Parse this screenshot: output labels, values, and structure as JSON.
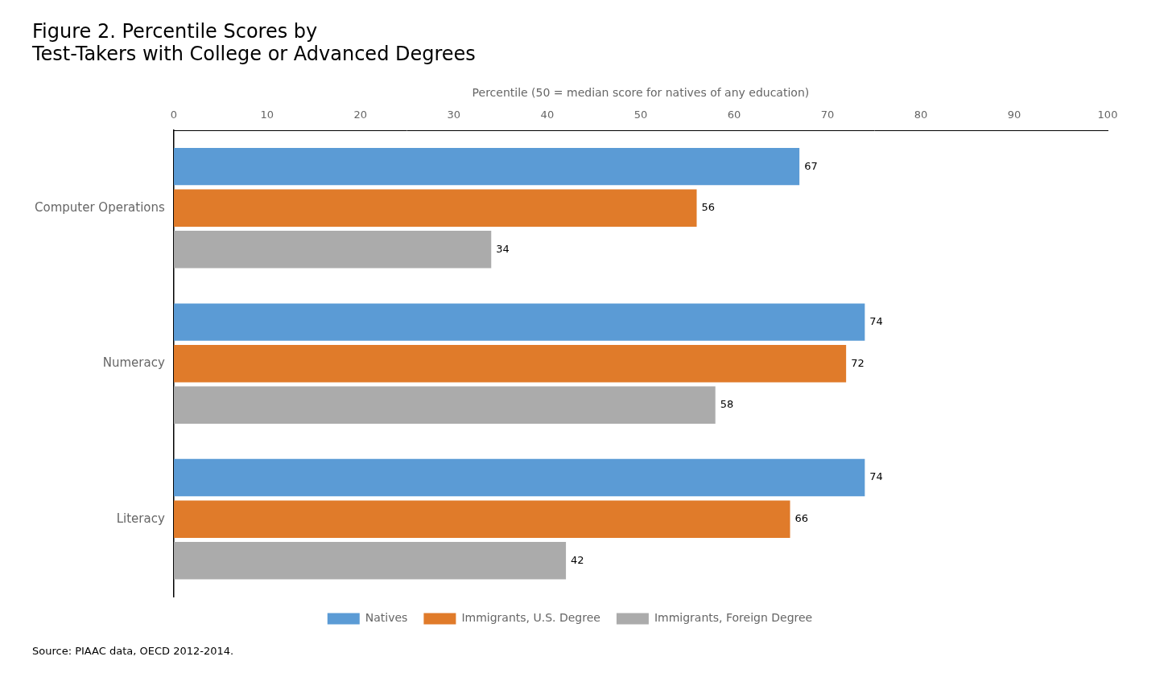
{
  "chart_data": {
    "type": "bar",
    "orientation": "horizontal",
    "title": [
      "Figure 2. Percentile Scores by",
      "Test-Takers with College or Advanced Degrees"
    ],
    "x_label": "Percentile (50 = median score for natives of any education)",
    "annotation": "Source: PIAAC data, OECD 2012-2014.",
    "categories": [
      "Computer Operations",
      "Numeracy",
      "Literacy"
    ],
    "series": [
      {
        "name": "Natives",
        "color": "#5B9BD5",
        "values": [
          67,
          74,
          74
        ]
      },
      {
        "name": "Immigrants, U.S. Degree",
        "color": "#E07B2A",
        "values": [
          56,
          72,
          66
        ]
      },
      {
        "name": "Immigrants, Foreign Degree",
        "color": "#ABABAB",
        "values": [
          34,
          58,
          42
        ]
      }
    ],
    "xlim": [
      0,
      100
    ],
    "xticks": [
      0,
      10,
      20,
      30,
      40,
      50,
      60,
      70,
      80,
      90,
      100
    ],
    "grid": false,
    "legend": "bottom",
    "data_labels": true
  }
}
